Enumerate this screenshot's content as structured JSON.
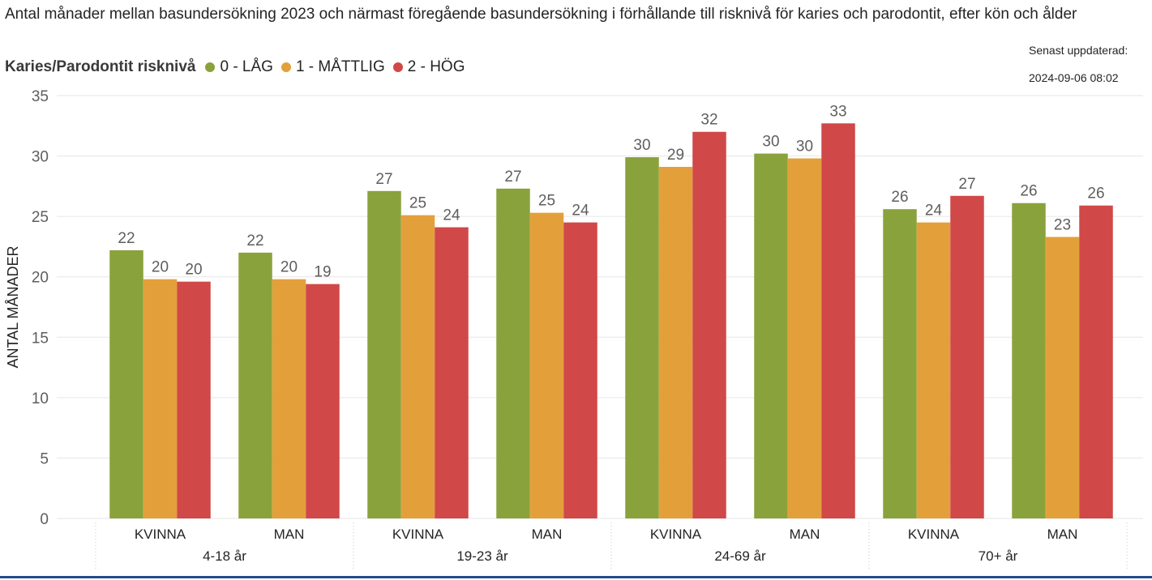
{
  "title": "Antal månader mellan basundersökning 2023 och närmast föregående basundersökning i förhållande till risknivå för karies och parodontit, efter kön och ålder",
  "updated": {
    "label": "Senast uppdaterad:",
    "value": "2024-09-06 08:02"
  },
  "legend": {
    "title": "Karies/Parodontit risknivå",
    "items": [
      {
        "label": "0 - LÅG",
        "color": "#8aa23b"
      },
      {
        "label": "1 - MÅTTLIG",
        "color": "#e3a03a"
      },
      {
        "label": "2 - HÖG",
        "color": "#d04848"
      }
    ]
  },
  "chart_data": {
    "type": "bar",
    "ylabel": "ANTAL MÅNADER",
    "ylim": [
      0,
      35
    ],
    "yticks": [
      0,
      5,
      10,
      15,
      20,
      25,
      30,
      35
    ],
    "grid": true,
    "legend_position": "top-left",
    "groups": [
      "4-18 år",
      "19-23 år",
      "24-69 år",
      "70+ år"
    ],
    "categories": [
      {
        "label": "KVINNA",
        "group": "4-18 år"
      },
      {
        "label": "MAN",
        "group": "4-18 år"
      },
      {
        "label": "KVINNA",
        "group": "19-23 år"
      },
      {
        "label": "MAN",
        "group": "19-23 år"
      },
      {
        "label": "KVINNA",
        "group": "24-69 år"
      },
      {
        "label": "MAN",
        "group": "24-69 år"
      },
      {
        "label": "KVINNA",
        "group": "70+ år"
      },
      {
        "label": "MAN",
        "group": "70+ år"
      }
    ],
    "series": [
      {
        "name": "0 - LÅG",
        "color": "#8aa23b",
        "values": [
          22.2,
          22.0,
          27.1,
          27.3,
          29.9,
          30.2,
          25.6,
          26.1
        ],
        "labels": [
          "22",
          "22",
          "27",
          "27",
          "30",
          "30",
          "26",
          "26"
        ]
      },
      {
        "name": "1 - MÅTTLIG",
        "color": "#e3a03a",
        "values": [
          19.8,
          19.8,
          25.1,
          25.3,
          29.1,
          29.8,
          24.5,
          23.3
        ],
        "labels": [
          "20",
          "20",
          "25",
          "25",
          "29",
          "30",
          "24",
          "23"
        ]
      },
      {
        "name": "2 - HÖG",
        "color": "#d04848",
        "values": [
          19.6,
          19.4,
          24.1,
          24.5,
          32.0,
          32.7,
          26.7,
          25.9
        ],
        "labels": [
          "20",
          "19",
          "24",
          "24",
          "32",
          "33",
          "27",
          "26"
        ]
      }
    ]
  }
}
